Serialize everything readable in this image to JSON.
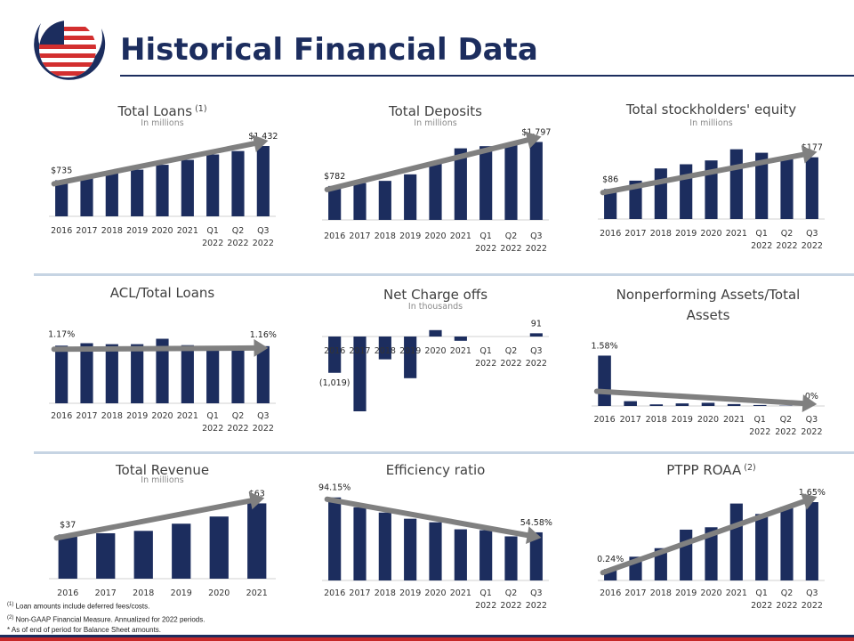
{
  "title": "Historical Financial Data",
  "footnotes": {
    "note1_marker": "(1)",
    "note1_text": "Loan amounts include deferred fees/costs.",
    "note2_marker": "(2)",
    "note2_text": "Non-GAAP Financial Measure. Annualized for 2022 periods.",
    "note3_marker": "*",
    "note3_text": "As of end of period for Balance Sheet amounts."
  },
  "colors": {
    "bar": "#1c2d5e",
    "trend_arrow": "#808080",
    "title": "#1c2d5e",
    "separator": "#c6d4e3",
    "accent_red": "#c62828"
  },
  "logo": {
    "icon": "globe-flag-logo-icon"
  },
  "chart_data": [
    {
      "type": "bar",
      "title": "Total Loans",
      "title_sup": "(1)",
      "subtitle": "In millions",
      "categories": [
        [
          "2016"
        ],
        [
          "2017"
        ],
        [
          "2018"
        ],
        [
          "2019"
        ],
        [
          "2020"
        ],
        [
          "2021"
        ],
        [
          "Q1",
          "2022"
        ],
        [
          "Q2",
          "2022"
        ],
        [
          "Q3",
          "2022"
        ]
      ],
      "values": [
        735,
        780,
        880,
        950,
        1050,
        1150,
        1260,
        1330,
        1432
      ],
      "ylim": [
        0,
        1650
      ],
      "labels": [
        {
          "index": 0,
          "text": "$735"
        },
        {
          "index": 8,
          "text": "$1,432"
        }
      ],
      "trend": "up"
    },
    {
      "type": "bar",
      "title": "Total Deposits",
      "subtitle": "In millions",
      "categories": [
        [
          "2016"
        ],
        [
          "2017"
        ],
        [
          "2018"
        ],
        [
          "2019"
        ],
        [
          "2020"
        ],
        [
          "2021"
        ],
        [
          "Q1",
          "2022"
        ],
        [
          "Q2",
          "2022"
        ],
        [
          "Q3",
          "2022"
        ]
      ],
      "values": [
        782,
        850,
        900,
        1050,
        1300,
        1650,
        1700,
        1740,
        1797
      ],
      "ylim": [
        0,
        1950
      ],
      "labels": [
        {
          "index": 0,
          "text": "$782"
        },
        {
          "index": 8,
          "text": "$1,797"
        }
      ],
      "trend": "up"
    },
    {
      "type": "bar",
      "title": "Total stockholders' equity",
      "subtitle": "In millions",
      "categories": [
        [
          "2016"
        ],
        [
          "2017"
        ],
        [
          "2018"
        ],
        [
          "2019"
        ],
        [
          "2020"
        ],
        [
          "2021"
        ],
        [
          "Q1",
          "2022"
        ],
        [
          "Q2",
          "2022"
        ],
        [
          "Q3",
          "2022"
        ]
      ],
      "values": [
        86,
        110,
        145,
        157,
        168,
        200,
        190,
        180,
        177
      ],
      "ylim": [
        0,
        240
      ],
      "labels": [
        {
          "index": 0,
          "text": "$86"
        },
        {
          "index": 8,
          "text": "$177"
        }
      ],
      "trend": "up"
    },
    {
      "type": "bar",
      "title": "ACL/Total Loans",
      "categories": [
        [
          "2016"
        ],
        [
          "2017"
        ],
        [
          "2018"
        ],
        [
          "2019"
        ],
        [
          "2020"
        ],
        [
          "2021"
        ],
        [
          "Q1",
          "2022"
        ],
        [
          "Q2",
          "2022"
        ],
        [
          "Q3",
          "2022"
        ]
      ],
      "values": [
        1.17,
        1.22,
        1.2,
        1.2,
        1.31,
        1.18,
        1.16,
        1.16,
        1.16
      ],
      "ylim": [
        0,
        1.5
      ],
      "labels": [
        {
          "index": 0,
          "text": "1.17%"
        },
        {
          "index": 8,
          "text": "1.16%"
        }
      ],
      "trend": "flat"
    },
    {
      "type": "bar",
      "title": "Net Charge offs",
      "subtitle": "In thousands",
      "categories": [
        [
          "2016"
        ],
        [
          "2017"
        ],
        [
          "2018"
        ],
        [
          "2019"
        ],
        [
          "2020"
        ],
        [
          "2021"
        ],
        [
          "Q1",
          "2022"
        ],
        [
          "Q2",
          "2022"
        ],
        [
          "Q3",
          "2022"
        ]
      ],
      "values": [
        -1019,
        -2100,
        -640,
        -1170,
        180,
        -120,
        0,
        0,
        91
      ],
      "ylim": [
        -2150,
        450
      ],
      "labels": [
        {
          "index": 0,
          "text": "(1,019)"
        },
        {
          "index": 8,
          "text": "91"
        }
      ],
      "trend": "none"
    },
    {
      "type": "bar",
      "title": "Nonperforming Assets/Total Assets",
      "categories": [
        [
          "2016"
        ],
        [
          "2017"
        ],
        [
          "2018"
        ],
        [
          "2019"
        ],
        [
          "2020"
        ],
        [
          "2021"
        ],
        [
          "Q1",
          "2022"
        ],
        [
          "Q2",
          "2022"
        ],
        [
          "Q3",
          "2022"
        ]
      ],
      "values": [
        1.58,
        0.15,
        0.05,
        0.08,
        0.1,
        0.06,
        0.03,
        0.01,
        0
      ],
      "ylim": [
        0,
        1.9
      ],
      "labels": [
        {
          "index": 0,
          "text": "1.58%"
        },
        {
          "index": 8,
          "text": "0%"
        }
      ],
      "trend": "down"
    },
    {
      "type": "bar",
      "title": "Total Revenue",
      "subtitle": "In millions",
      "categories": [
        [
          "2016"
        ],
        [
          "2017"
        ],
        [
          "2018"
        ],
        [
          "2019"
        ],
        [
          "2020"
        ],
        [
          "2021"
        ]
      ],
      "values": [
        37,
        38,
        40,
        46,
        52,
        63
      ],
      "ylim": [
        0,
        73
      ],
      "labels": [
        {
          "index": 0,
          "text": "$37"
        },
        {
          "index": 5,
          "text": "$63"
        }
      ],
      "trend": "up"
    },
    {
      "type": "bar",
      "title": "Efficiency ratio",
      "categories": [
        [
          "2016"
        ],
        [
          "2017"
        ],
        [
          "2018"
        ],
        [
          "2019"
        ],
        [
          "2020"
        ],
        [
          "2021"
        ],
        [
          "Q1",
          "2022"
        ],
        [
          "Q2",
          "2022"
        ],
        [
          "Q3",
          "2022"
        ]
      ],
      "values": [
        94.15,
        83,
        77,
        70,
        66,
        58,
        57,
        50,
        54.58
      ],
      "ylim": [
        0,
        105
      ],
      "labels": [
        {
          "index": 0,
          "text": "94.15%"
        },
        {
          "index": 8,
          "text": "54.58%"
        }
      ],
      "trend": "down"
    },
    {
      "type": "bar",
      "title": "PTPP ROAA",
      "title_sup": "(2)",
      "categories": [
        [
          "2016"
        ],
        [
          "2017"
        ],
        [
          "2018"
        ],
        [
          "2019"
        ],
        [
          "2020"
        ],
        [
          "2021"
        ],
        [
          "Q1",
          "2022"
        ],
        [
          "Q2",
          "2022"
        ],
        [
          "Q3",
          "2022"
        ]
      ],
      "values": [
        0.24,
        0.5,
        0.68,
        1.07,
        1.12,
        1.62,
        1.4,
        1.55,
        1.65
      ],
      "ylim": [
        0,
        1.95
      ],
      "labels": [
        {
          "index": 0,
          "text": "0.24%"
        },
        {
          "index": 8,
          "text": "1.65%"
        }
      ],
      "trend": "up"
    }
  ]
}
